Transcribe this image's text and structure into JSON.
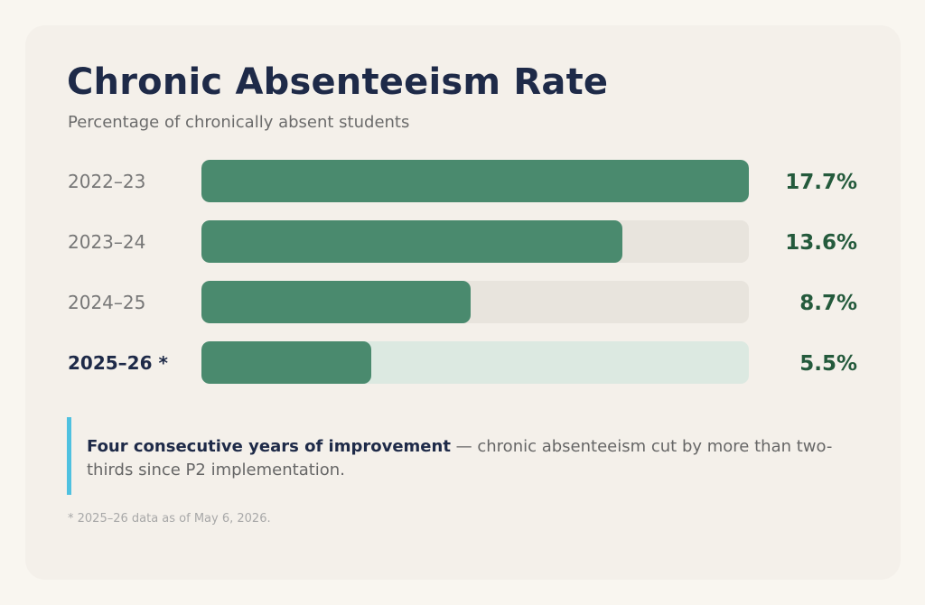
{
  "chart_data": {
    "type": "bar",
    "orientation": "horizontal",
    "title": "Chronic Absenteeism Rate",
    "subtitle": "Percentage of chronically absent students",
    "categories": [
      "2022–23",
      "2023–24",
      "2024–25",
      "2025–26 *"
    ],
    "values": [
      17.7,
      13.6,
      8.7,
      5.5
    ],
    "value_labels": [
      "17.7%",
      "13.6%",
      "8.7%",
      "5.5%"
    ],
    "xlim": [
      0,
      17.7
    ],
    "grid": false,
    "highlighted_category": "2025–26 *",
    "colors": {
      "bar": "#4a8a6e",
      "track": "#e8e4dd",
      "track_highlight": "#dce9e1",
      "value_text": "#245a3c",
      "accent": "#4fc1e0"
    }
  },
  "callout": {
    "bold": "Four consecutive years of improvement",
    "text": " — chronic absenteeism cut by more than two-thirds since P2 implementation."
  },
  "footnote": "* 2025–26 data as of May 6, 2026."
}
